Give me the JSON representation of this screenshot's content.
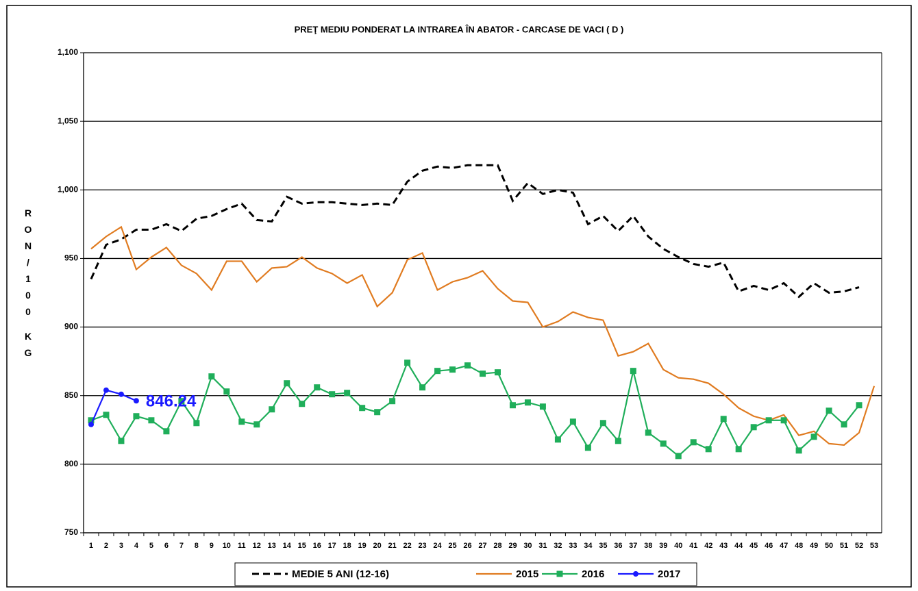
{
  "chart_data": {
    "type": "line",
    "title": "PREŢ MEDIU PONDERAT LA INTRAREA ÎN ABATOR - CARCASE DE VACI ( D )",
    "ylabel": "RON/100 KG",
    "categories": [
      "1",
      "2",
      "3",
      "4",
      "5",
      "6",
      "7",
      "8",
      "9",
      "10",
      "11",
      "12",
      "13",
      "14",
      "15",
      "16",
      "17",
      "18",
      "19",
      "20",
      "21",
      "22",
      "23",
      "24",
      "25",
      "26",
      "27",
      "28",
      "29",
      "30",
      "31",
      "32",
      "33",
      "34",
      "35",
      "36",
      "37",
      "38",
      "39",
      "40",
      "41",
      "42",
      "43",
      "44",
      "45",
      "46",
      "47",
      "48",
      "49",
      "50",
      "51",
      "52",
      "53"
    ],
    "ylim": [
      750,
      1100
    ],
    "yticks": [
      750,
      800,
      850,
      900,
      950,
      {
        "value": 1000,
        "label": "1,000"
      },
      {
        "value": 1050,
        "label": "1,050"
      },
      {
        "value": 1100,
        "label": "1,100"
      }
    ],
    "grid": true,
    "legend": "bottom",
    "series": [
      {
        "name": "MEDIE 5 ANI (12-16)",
        "color": "#000000",
        "style": "dashed",
        "marker": "none",
        "values": [
          935,
          960,
          964,
          971,
          971,
          975,
          970,
          979,
          981,
          986,
          990,
          978,
          977,
          995,
          990,
          991,
          991,
          990,
          989,
          990,
          989,
          1006,
          1014,
          1017,
          1016,
          1018,
          1018,
          1018,
          992,
          1005,
          997,
          1000,
          998,
          975,
          981,
          970,
          981,
          966,
          957,
          951,
          946,
          944,
          947,
          926,
          930,
          927,
          932,
          922,
          932,
          925,
          926,
          929,
          null
        ]
      },
      {
        "name": "2015",
        "color": "#e07b20",
        "style": "solid",
        "marker": "none",
        "values": [
          957,
          966,
          973,
          942,
          951,
          958,
          945,
          939,
          927,
          948,
          948,
          933,
          943,
          944,
          951,
          943,
          939,
          932,
          938,
          915,
          925,
          949,
          954,
          927,
          933,
          936,
          941,
          928,
          919,
          918,
          900,
          904,
          911,
          907,
          905,
          879,
          882,
          888,
          869,
          863,
          862,
          859,
          851,
          841,
          835,
          832,
          836,
          821,
          824,
          815,
          814,
          823,
          857
        ]
      },
      {
        "name": "2016",
        "color": "#1fae5a",
        "style": "solid",
        "marker": "square",
        "values": [
          832,
          836,
          817,
          835,
          832,
          824,
          846,
          830,
          864,
          853,
          831,
          829,
          840,
          859,
          844,
          856,
          851,
          852,
          841,
          838,
          846,
          874,
          856,
          868,
          869,
          872,
          866,
          867,
          843,
          845,
          842,
          818,
          831,
          812,
          830,
          817,
          868,
          823,
          815,
          806,
          816,
          811,
          833,
          811,
          827,
          832,
          832,
          810,
          820,
          839,
          829,
          843,
          null
        ]
      },
      {
        "name": "2017",
        "color": "#1a1aff",
        "style": "solid",
        "marker": "circle",
        "values": [
          829,
          854,
          851,
          846.24,
          null,
          null,
          null,
          null,
          null,
          null,
          null,
          null,
          null,
          null,
          null,
          null,
          null,
          null,
          null,
          null,
          null,
          null,
          null,
          null,
          null,
          null,
          null,
          null,
          null,
          null,
          null,
          null,
          null,
          null,
          null,
          null,
          null,
          null,
          null,
          null,
          null,
          null,
          null,
          null,
          null,
          null,
          null,
          null,
          null,
          null,
          null,
          null,
          null
        ]
      }
    ]
  }
}
